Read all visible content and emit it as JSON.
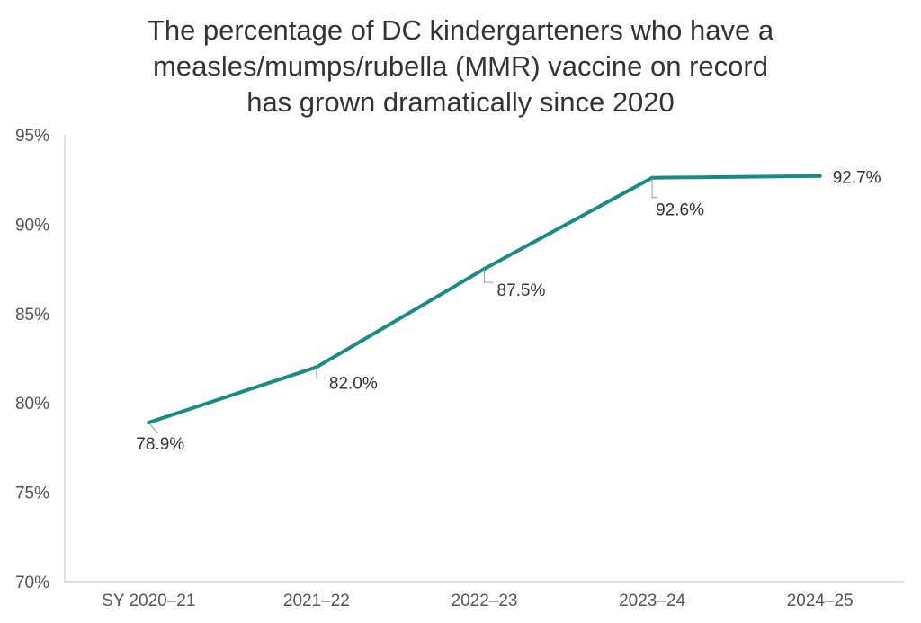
{
  "chart_data": {
    "type": "line",
    "title_lines": [
      "The percentage of  DC kindergarteners who have a",
      "measles/mumps/rubella (MMR) vaccine on record",
      "has grown dramatically since 2020"
    ],
    "categories": [
      "SY 2020–21",
      "2021–22",
      "2022–23",
      "2023–24",
      "2024–25"
    ],
    "series": [
      {
        "values": [
          78.9,
          82.0,
          87.5,
          92.6,
          92.7
        ],
        "labels": [
          "78.9%",
          "82.0%",
          "87.5%",
          "92.6%",
          "92.7%"
        ],
        "color": "#1a8a85"
      }
    ],
    "y_ticks": [
      70,
      75,
      80,
      85,
      90,
      95
    ],
    "y_tick_labels": [
      "70%",
      "75%",
      "80%",
      "85%",
      "90%",
      "95%"
    ],
    "ylim": [
      70,
      95
    ],
    "grid": false,
    "legend": "none",
    "axis_color": "#bfbfbf"
  }
}
